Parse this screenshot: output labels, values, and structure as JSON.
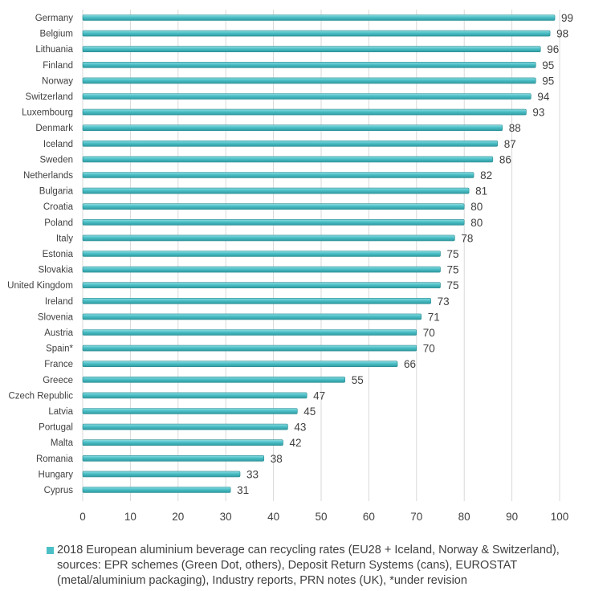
{
  "chart_data": {
    "type": "bar",
    "orientation": "horizontal",
    "categories": [
      "Germany",
      "Belgium",
      "Lithuania",
      "Finland",
      "Norway",
      "Switzerland",
      "Luxembourg",
      "Denmark",
      "Iceland",
      "Sweden",
      "Netherlands",
      "Bulgaria",
      "Croatia",
      "Poland",
      "Italy",
      "Estonia",
      "Slovakia",
      "United Kingdom",
      "Ireland",
      "Slovenia",
      "Austria",
      "Spain*",
      "France",
      "Greece",
      "Czech Republic",
      "Latvia",
      "Portugal",
      "Malta",
      "Romania",
      "Hungary",
      "Cyprus"
    ],
    "values": [
      99,
      98,
      96,
      95,
      95,
      94,
      93,
      88,
      87,
      86,
      82,
      81,
      80,
      80,
      78,
      75,
      75,
      75,
      73,
      71,
      70,
      70,
      66,
      55,
      47,
      45,
      43,
      42,
      38,
      33,
      31
    ],
    "xlim": [
      0,
      100
    ],
    "xticks": [
      "0",
      "10",
      "20",
      "30",
      "40",
      "50",
      "60",
      "70",
      "80",
      "90",
      "100"
    ],
    "grid": true,
    "series_color": "#4bbfc6",
    "legend": {
      "placement": "bottom",
      "text": "2018 European aluminium beverage can recycling rates (EU28 + Iceland, Norway & Switzerland), sources: EPR schemes (Green Dot, others), Deposit Return Systems (cans), EUROSTAT (metal/aluminium packaging), Industry reports, PRN notes (UK), *under revision"
    }
  }
}
